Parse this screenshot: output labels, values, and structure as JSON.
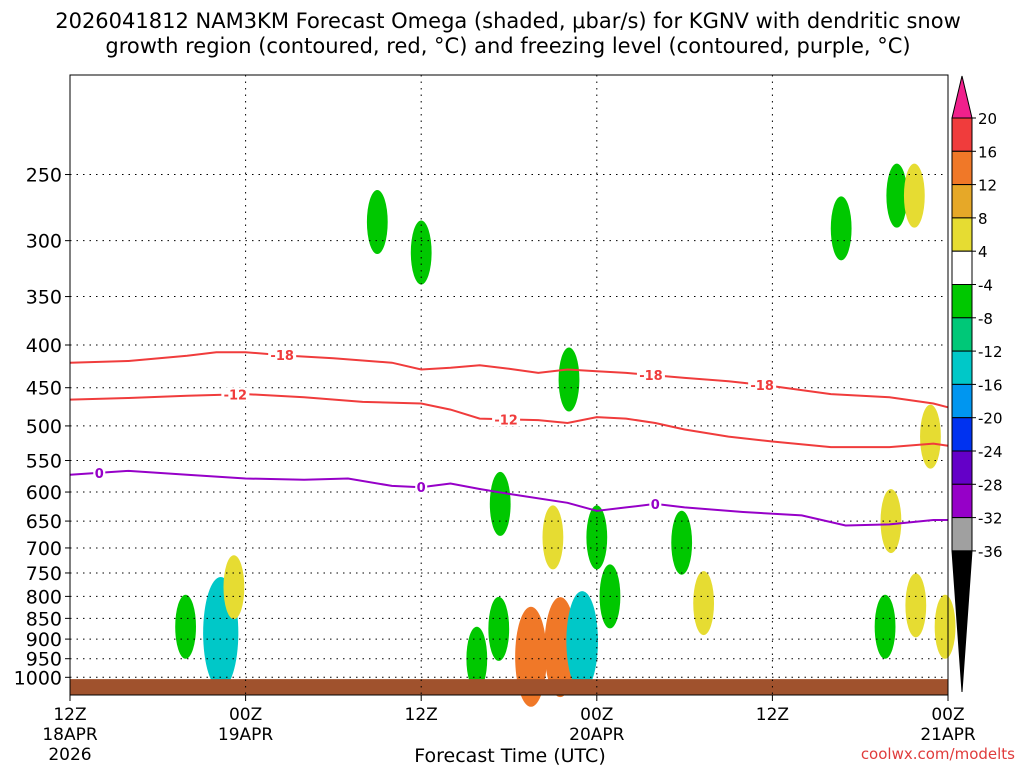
{
  "title_line1": "2026041812 NAM3KM Forecast Omega (shaded, μbar/s) for KGNV with dendritic snow",
  "title_line2": "growth region (contoured, red, °C) and freezing level (contoured, purple, °C)",
  "xlabel": "Forecast Time (UTC)",
  "watermark": "coolwx.com/modelts",
  "chart_data": {
    "type": "heatmap",
    "title": "2026041812 NAM3KM Forecast Omega (shaded, μbar/s) for KGNV with dendritic snow growth region (contoured, red, °C) and freezing level (contoured, purple, °C)",
    "xlabel": "Forecast Time (UTC)",
    "ylabel": "",
    "x_unit": "hours since 2026-04-18 12Z",
    "xlim": [
      0,
      60
    ],
    "ylim_pressure_hpa": [
      1050,
      190
    ],
    "y_scale": "log-pressure (inverted)",
    "x_ticks": [
      {
        "x": 0,
        "label": [
          "12Z",
          "18APR",
          "2026"
        ]
      },
      {
        "x": 12,
        "label": [
          "00Z",
          "19APR"
        ]
      },
      {
        "x": 24,
        "label": [
          "12Z"
        ]
      },
      {
        "x": 36,
        "label": [
          "00Z",
          "20APR"
        ]
      },
      {
        "x": 48,
        "label": [
          "12Z"
        ]
      },
      {
        "x": 60,
        "label": [
          "00Z",
          "21APR"
        ]
      }
    ],
    "y_ticks": [
      250,
      300,
      350,
      400,
      450,
      500,
      550,
      600,
      650,
      700,
      750,
      800,
      850,
      900,
      950,
      1000
    ],
    "grid": "dotted",
    "colorbar": {
      "labels": [
        "20",
        "16",
        "12",
        "8",
        "4",
        "-4",
        "-8",
        "-12",
        "-16",
        "-20",
        "-24",
        "-28",
        "-32",
        "-36"
      ],
      "colors": [
        "#f0208c",
        "#f03c3c",
        "#f07828",
        "#e6a828",
        "#e6dc32",
        "#ffffff",
        "#00c800",
        "#00c878",
        "#00c8c8",
        "#0096f0",
        "#0032f0",
        "#6400c8",
        "#9600c8",
        "#a0a0a0",
        "#000000"
      ]
    },
    "contours": [
      {
        "name": "-18",
        "color": "#f03c3c",
        "label": "-18",
        "label_at": [
          14.5,
          39.7,
          47.3
        ],
        "points": [
          [
            0,
            420
          ],
          [
            4,
            418
          ],
          [
            8,
            412
          ],
          [
            10,
            408
          ],
          [
            12,
            408
          ],
          [
            15,
            412
          ],
          [
            18,
            415
          ],
          [
            22,
            420
          ],
          [
            24,
            428
          ],
          [
            26,
            426
          ],
          [
            28,
            423
          ],
          [
            30,
            427
          ],
          [
            32,
            432
          ],
          [
            34,
            428
          ],
          [
            36,
            430
          ],
          [
            38,
            432
          ],
          [
            42,
            438
          ],
          [
            45,
            442
          ],
          [
            48,
            448
          ],
          [
            52,
            458
          ],
          [
            56,
            462
          ],
          [
            59,
            470
          ],
          [
            60,
            475
          ]
        ]
      },
      {
        "name": "-12",
        "color": "#f03c3c",
        "label": "-12",
        "label_at": [
          11.3,
          29.8
        ],
        "points": [
          [
            0,
            465
          ],
          [
            4,
            463
          ],
          [
            8,
            460
          ],
          [
            12,
            458
          ],
          [
            16,
            462
          ],
          [
            20,
            468
          ],
          [
            24,
            470
          ],
          [
            26,
            478
          ],
          [
            28,
            490
          ],
          [
            32,
            492
          ],
          [
            34,
            496
          ],
          [
            36,
            488
          ],
          [
            38,
            490
          ],
          [
            40,
            496
          ],
          [
            42,
            505
          ],
          [
            45,
            515
          ],
          [
            48,
            522
          ],
          [
            52,
            530
          ],
          [
            56,
            530
          ],
          [
            59,
            525
          ],
          [
            60,
            528
          ]
        ]
      },
      {
        "name": "0",
        "color": "#9600c8",
        "label": "0",
        "label_at": [
          2,
          24,
          40
        ],
        "points": [
          [
            0,
            572
          ],
          [
            4,
            566
          ],
          [
            8,
            572
          ],
          [
            12,
            578
          ],
          [
            16,
            580
          ],
          [
            19,
            578
          ],
          [
            22,
            590
          ],
          [
            24,
            592
          ],
          [
            26,
            586
          ],
          [
            28,
            595
          ],
          [
            30,
            603
          ],
          [
            34,
            618
          ],
          [
            36,
            632
          ],
          [
            38,
            626
          ],
          [
            40,
            620
          ],
          [
            42,
            626
          ],
          [
            46,
            634
          ],
          [
            50,
            640
          ],
          [
            53,
            658
          ],
          [
            56,
            656
          ],
          [
            59,
            648
          ],
          [
            60,
            648
          ]
        ]
      }
    ],
    "shaded_cells": [
      {
        "x": 7.9,
        "p": 870,
        "value": -6
      },
      {
        "x": 10.2,
        "p": 870,
        "value": -8
      },
      {
        "x": 10.3,
        "p": 885,
        "value": -14
      },
      {
        "x": 11.2,
        "p": 780,
        "value": 6
      },
      {
        "x": 21.0,
        "p": 285,
        "value": -6
      },
      {
        "x": 24.0,
        "p": 310,
        "value": -6
      },
      {
        "x": 34.1,
        "p": 440,
        "value": -6
      },
      {
        "x": 29.4,
        "p": 620,
        "value": -6
      },
      {
        "x": 33.0,
        "p": 680,
        "value": 6
      },
      {
        "x": 36.0,
        "p": 680,
        "value": -6
      },
      {
        "x": 29.3,
        "p": 875,
        "value": -6
      },
      {
        "x": 31.5,
        "p": 930,
        "value": 8
      },
      {
        "x": 31.5,
        "p": 945,
        "value": 12
      },
      {
        "x": 33.5,
        "p": 900,
        "value": 6
      },
      {
        "x": 33.5,
        "p": 920,
        "value": 12
      },
      {
        "x": 34.9,
        "p": 880,
        "value": -6
      },
      {
        "x": 35.0,
        "p": 905,
        "value": -12
      },
      {
        "x": 36.9,
        "p": 800,
        "value": -6
      },
      {
        "x": 27.8,
        "p": 950,
        "value": -6
      },
      {
        "x": 41.8,
        "p": 690,
        "value": -6
      },
      {
        "x": 43.3,
        "p": 815,
        "value": 6
      },
      {
        "x": 52.7,
        "p": 290,
        "value": -6
      },
      {
        "x": 56.5,
        "p": 265,
        "value": -6
      },
      {
        "x": 57.7,
        "p": 265,
        "value": 6
      },
      {
        "x": 55.7,
        "p": 870,
        "value": -6
      },
      {
        "x": 56.1,
        "p": 650,
        "value": 6
      },
      {
        "x": 58.8,
        "p": 515,
        "value": 6
      },
      {
        "x": 57.8,
        "p": 820,
        "value": 6
      },
      {
        "x": 59.8,
        "p": 870,
        "value": 6
      }
    ],
    "terrain_band_hpa": [
      1005,
      1050
    ]
  }
}
